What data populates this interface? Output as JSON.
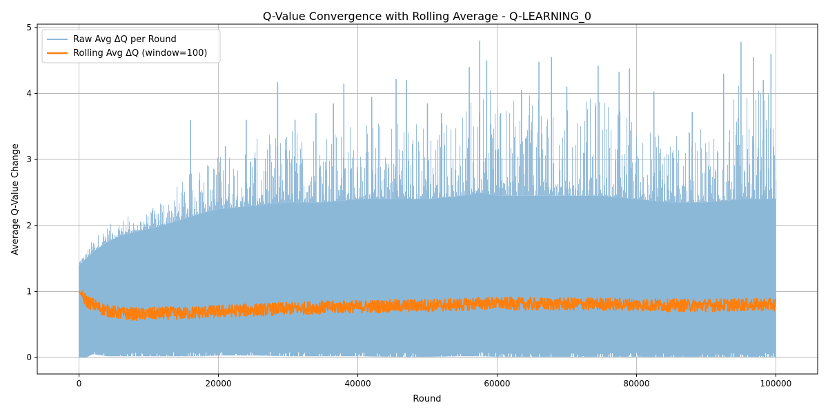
{
  "chart_data": {
    "type": "line",
    "title": "Q-Value Convergence with Rolling Average - Q-LEARNING_0",
    "xlabel": "Round",
    "ylabel": "Average Q-Value Change",
    "xlim": [
      -6000,
      106000
    ],
    "ylim": [
      -0.25,
      5.05
    ],
    "x_ticks": [
      0,
      20000,
      40000,
      60000,
      80000,
      100000
    ],
    "y_ticks": [
      0,
      1,
      2,
      3,
      4,
      5
    ],
    "grid": true,
    "legend_position": "top-left",
    "series": [
      {
        "name": "Raw Avg ΔQ per Round",
        "color": "#8cb8d8",
        "style": "noisy-band",
        "x": [
          0,
          1000,
          2000,
          4000,
          6000,
          8000,
          10000,
          12000,
          15000,
          18000,
          20000,
          25000,
          30000,
          35000,
          40000,
          45000,
          50000,
          55000,
          57500,
          60000,
          65000,
          70000,
          75000,
          80000,
          85000,
          90000,
          95000,
          100000
        ],
        "upper_envelope": [
          1.5,
          1.6,
          1.8,
          2.0,
          2.1,
          2.2,
          2.2,
          2.45,
          2.7,
          3.0,
          3.1,
          3.3,
          3.5,
          3.6,
          3.6,
          3.7,
          3.6,
          3.7,
          4.6,
          3.8,
          4.0,
          3.8,
          4.0,
          3.7,
          3.4,
          3.5,
          4.2,
          4.0
        ],
        "body_upper": [
          1.4,
          1.5,
          1.6,
          1.75,
          1.85,
          1.9,
          1.95,
          2.0,
          2.1,
          2.2,
          2.25,
          2.3,
          2.35,
          2.35,
          2.4,
          2.4,
          2.4,
          2.45,
          2.5,
          2.45,
          2.45,
          2.45,
          2.45,
          2.4,
          2.35,
          2.35,
          2.4,
          2.4
        ],
        "lower_envelope": [
          0.0,
          0.0,
          0.05,
          0.02,
          0.02,
          0.02,
          0.02,
          0.02,
          0.02,
          0.02,
          0.03,
          0.03,
          0.02,
          0.02,
          0.02,
          0.01,
          0.01,
          0.02,
          0.02,
          0.01,
          0.01,
          0.01,
          0.01,
          0.01,
          0.01,
          0.01,
          0.01,
          0.01
        ],
        "spikes": [
          [
            16000,
            3.6
          ],
          [
            21000,
            3.2
          ],
          [
            24000,
            3.6
          ],
          [
            28500,
            4.17
          ],
          [
            31000,
            3.6
          ],
          [
            34000,
            3.7
          ],
          [
            36500,
            3.85
          ],
          [
            38000,
            4.15
          ],
          [
            42000,
            3.95
          ],
          [
            45500,
            4.22
          ],
          [
            47000,
            4.2
          ],
          [
            50000,
            3.85
          ],
          [
            52000,
            3.7
          ],
          [
            56000,
            4.4
          ],
          [
            57500,
            4.8
          ],
          [
            58500,
            4.5
          ],
          [
            60500,
            3.7
          ],
          [
            63500,
            4.05
          ],
          [
            66000,
            4.48
          ],
          [
            67800,
            4.55
          ],
          [
            70000,
            4.1
          ],
          [
            74500,
            4.42
          ],
          [
            77500,
            4.33
          ],
          [
            79000,
            4.38
          ],
          [
            82500,
            4.03
          ],
          [
            88000,
            3.72
          ],
          [
            92500,
            4.3
          ],
          [
            95000,
            4.78
          ],
          [
            96800,
            4.55
          ],
          [
            98200,
            4.2
          ],
          [
            99300,
            4.6
          ]
        ]
      },
      {
        "name": "Rolling Avg ΔQ (window=100)",
        "color": "#ff7f0e",
        "style": "line",
        "x": [
          0,
          500,
          1000,
          2000,
          3000,
          4000,
          5000,
          6000,
          8000,
          10000,
          12000,
          15000,
          18000,
          20000,
          25000,
          30000,
          35000,
          40000,
          45000,
          50000,
          55000,
          57500,
          60000,
          65000,
          70000,
          75000,
          80000,
          85000,
          90000,
          95000,
          100000
        ],
        "y": [
          1.0,
          0.92,
          0.86,
          0.8,
          0.75,
          0.71,
          0.69,
          0.67,
          0.66,
          0.66,
          0.67,
          0.67,
          0.69,
          0.7,
          0.72,
          0.74,
          0.76,
          0.77,
          0.78,
          0.79,
          0.8,
          0.82,
          0.82,
          0.81,
          0.81,
          0.81,
          0.8,
          0.79,
          0.79,
          0.8,
          0.8
        ],
        "noise_amplitude": 0.12
      }
    ]
  }
}
